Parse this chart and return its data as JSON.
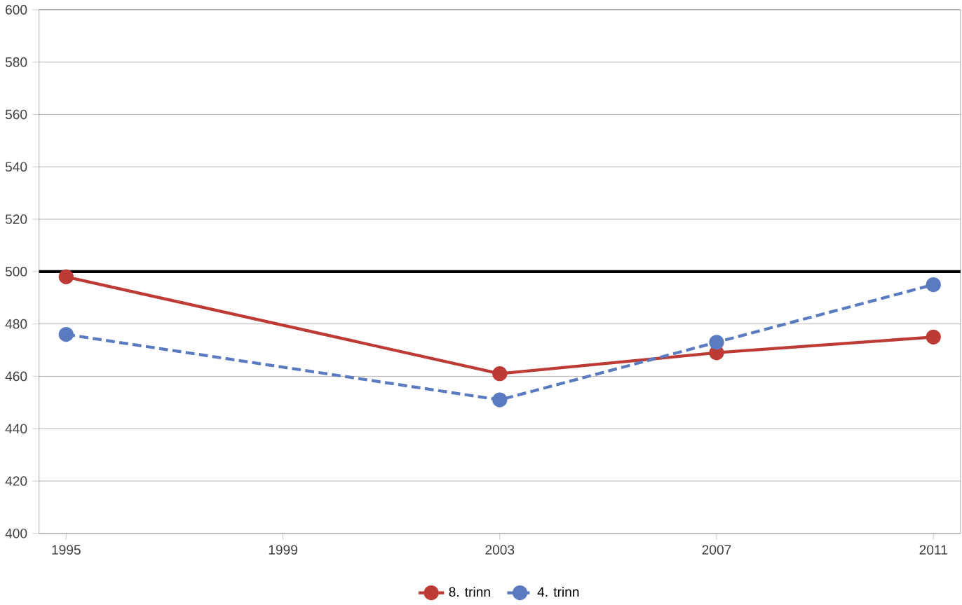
{
  "chart_data": {
    "type": "line",
    "x": [
      1995,
      2003,
      2007,
      2011
    ],
    "series": [
      {
        "name": "8. trinn",
        "color": "#be3a34",
        "values": [
          498,
          461,
          469,
          475
        ],
        "line_style": "solid"
      },
      {
        "name": "4. trinn",
        "color": "#5a7bbf",
        "values": [
          476,
          451,
          473,
          495
        ],
        "line_style": "dashed"
      }
    ],
    "xlim": [
      1994.5,
      2011.5
    ],
    "xticks": [
      1995,
      1999,
      2003,
      2007,
      2011
    ],
    "ylim": [
      400,
      600
    ],
    "yticks": [
      400,
      420,
      440,
      460,
      480,
      500,
      520,
      540,
      560,
      580,
      600
    ],
    "grid": "y",
    "legend": "bottom",
    "marker": "circle",
    "ref_lines": [
      {
        "axis": "y",
        "value": 500,
        "color": "#000000"
      }
    ]
  }
}
